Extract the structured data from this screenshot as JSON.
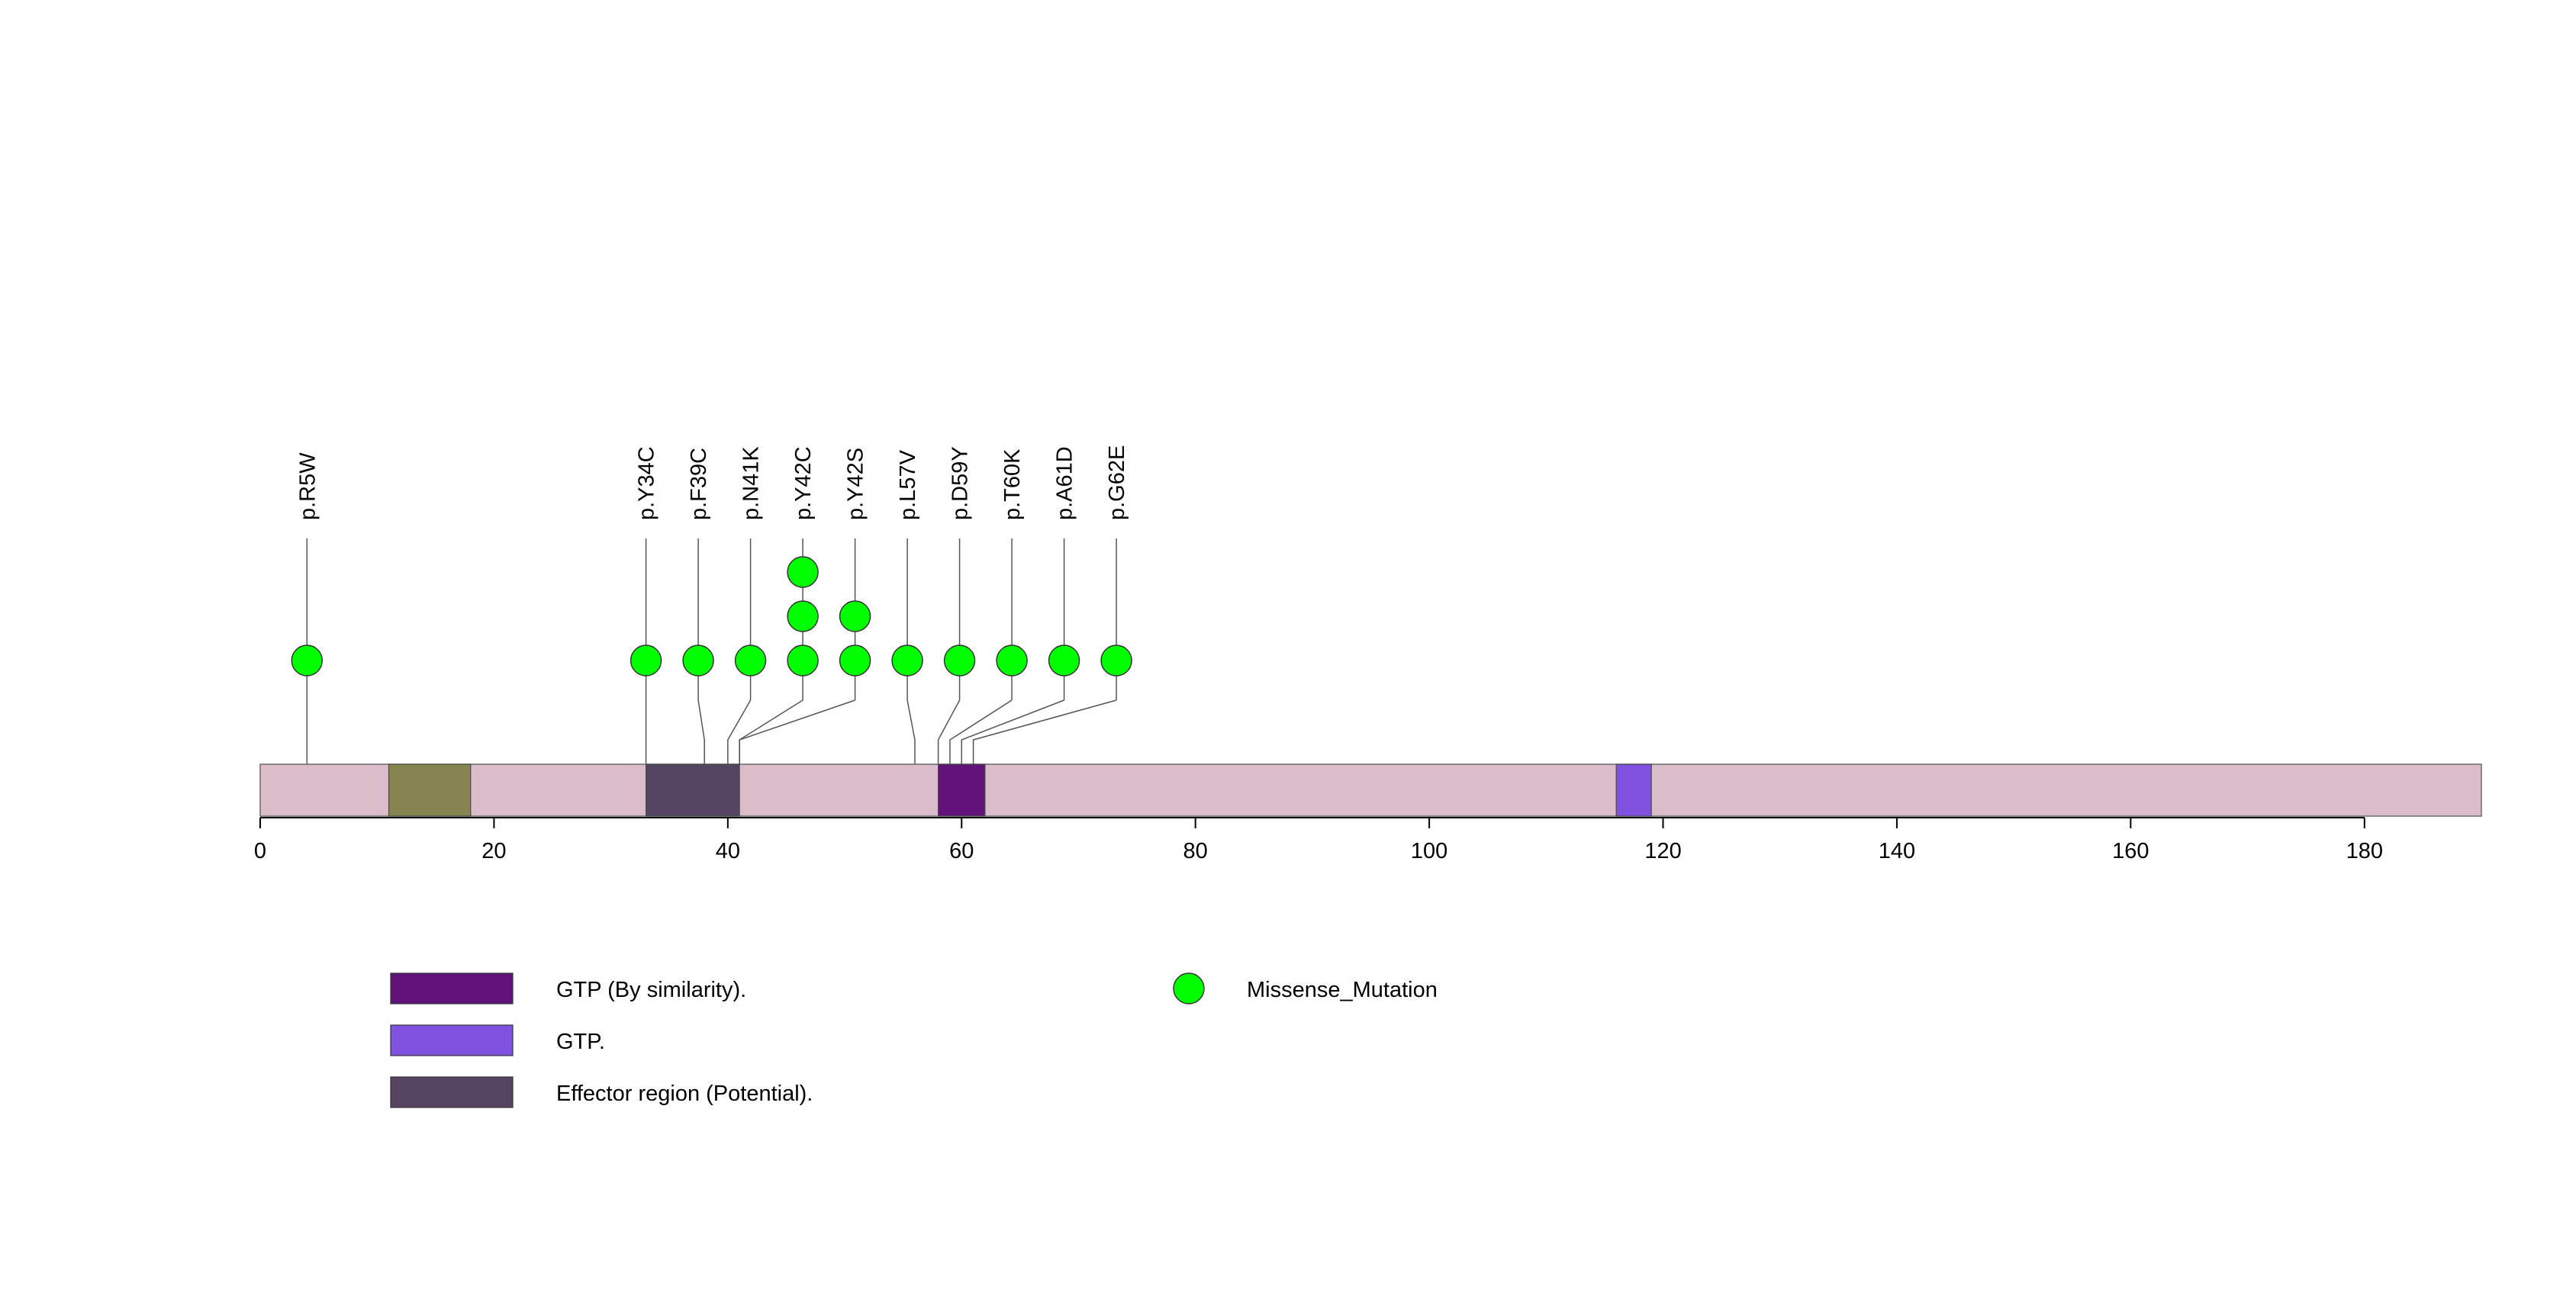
{
  "chart_data": {
    "type": "lollipop",
    "title": "",
    "xlabel": "",
    "ylabel": "",
    "xlim": [
      0,
      190
    ],
    "x_ticks": [
      0,
      20,
      40,
      60,
      80,
      100,
      120,
      140,
      160,
      180
    ],
    "protein": {
      "length": 190,
      "color": "#dbbcca"
    },
    "domains": [
      {
        "name": "",
        "start": 11,
        "end": 18,
        "color": "#868450"
      },
      {
        "name": "Effector region (Potential).",
        "start": 33,
        "end": 41,
        "color": "#554563"
      },
      {
        "name": "GTP (By similarity).",
        "start": 58,
        "end": 62,
        "color": "#611379"
      },
      {
        "name": "GTP.",
        "start": 116,
        "end": 119,
        "color": "#8152df"
      }
    ],
    "mutations": [
      {
        "label": "p.R5W",
        "position": 4,
        "count": 1,
        "type": "Missense_Mutation"
      },
      {
        "label": "p.Y34C",
        "position": 33,
        "count": 1,
        "type": "Missense_Mutation"
      },
      {
        "label": "p.F39C",
        "position": 38,
        "count": 1,
        "type": "Missense_Mutation"
      },
      {
        "label": "p.N41K",
        "position": 40,
        "count": 1,
        "type": "Missense_Mutation"
      },
      {
        "label": "p.Y42C",
        "position": 41,
        "count": 3,
        "type": "Missense_Mutation"
      },
      {
        "label": "p.Y42S",
        "position": 41,
        "count": 2,
        "type": "Missense_Mutation"
      },
      {
        "label": "p.L57V",
        "position": 56,
        "count": 1,
        "type": "Missense_Mutation"
      },
      {
        "label": "p.D59Y",
        "position": 58,
        "count": 1,
        "type": "Missense_Mutation"
      },
      {
        "label": "p.T60K",
        "position": 59,
        "count": 1,
        "type": "Missense_Mutation"
      },
      {
        "label": "p.A61D",
        "position": 60,
        "count": 1,
        "type": "Missense_Mutation"
      },
      {
        "label": "p.G62E",
        "position": 61,
        "count": 1,
        "type": "Missense_Mutation"
      }
    ],
    "legend": {
      "domains": [
        {
          "label": "GTP (By similarity).",
          "color": "#611379"
        },
        {
          "label": "GTP.",
          "color": "#8152df"
        },
        {
          "label": "Effector region (Potential).",
          "color": "#554563"
        }
      ],
      "mutation_types": [
        {
          "label": "Missense_Mutation",
          "color": "#00ff00"
        }
      ]
    }
  }
}
